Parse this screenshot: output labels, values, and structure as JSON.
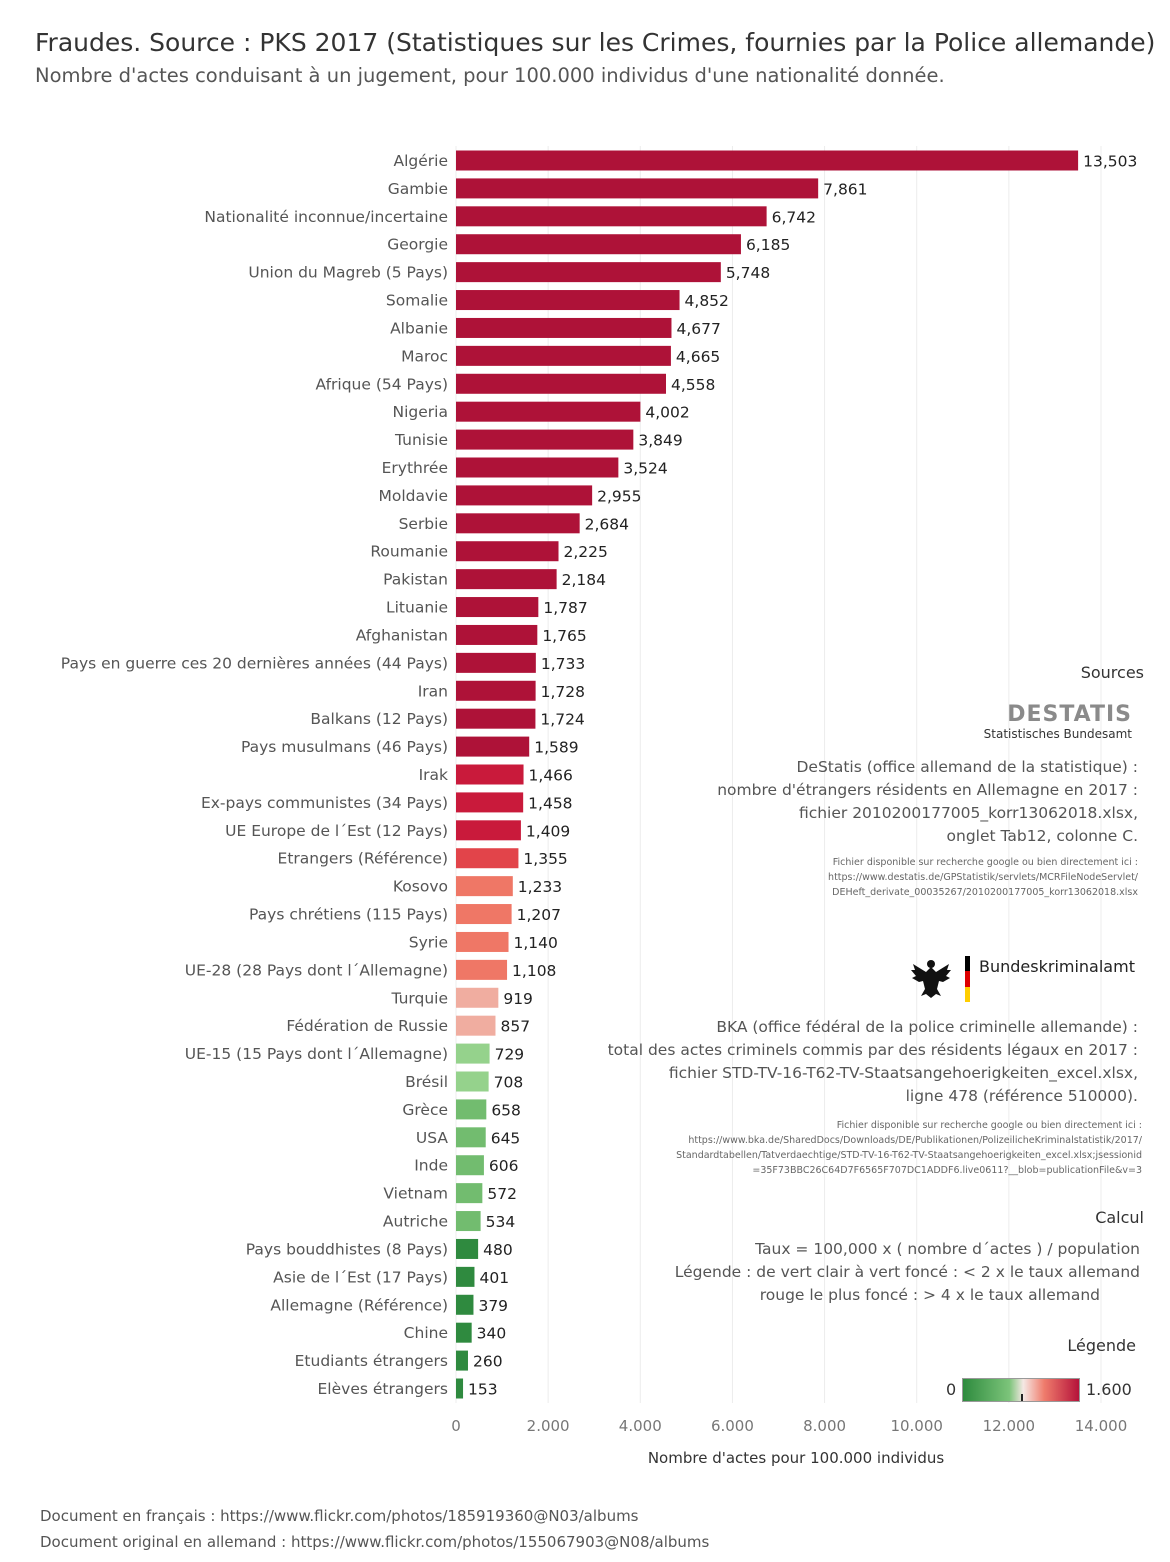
{
  "title": "Fraudes. Source : PKS 2017 (Statistiques sur les Crimes, fournies par la Police allemande)",
  "subtitle": "Nombre d'actes conduisant à un jugement, pour 100.000 individus d'une nationalité donnée.",
  "chart_data": {
    "type": "bar",
    "orientation": "horizontal",
    "categories": [
      "Algérie",
      "Gambie",
      "Nationalité inconnue/incertaine",
      "Georgie",
      "Union du Magreb (5 Pays)",
      "Somalie",
      "Albanie",
      "Maroc",
      "Afrique (54 Pays)",
      "Nigeria",
      "Tunisie",
      "Erythrée",
      "Moldavie",
      "Serbie",
      "Roumanie",
      "Pakistan",
      "Lituanie",
      "Afghanistan",
      "Pays en guerre ces 20 dernières années (44 Pays)",
      "Iran",
      "Balkans (12 Pays)",
      "Pays musulmans (46 Pays)",
      "Irak",
      "Ex-pays communistes (34 Pays)",
      "UE  Europe de l´Est (12  Pays)",
      "Etrangers (Référence)",
      "Kosovo",
      "Pays chrétiens (115 Pays)",
      "Syrie",
      "UE-28 (28 Pays dont l´Allemagne)",
      "Turquie",
      "Fédération de Russie",
      "UE-15 (15 Pays dont l´Allemagne)",
      "Brésil",
      "Grèce",
      "USA",
      "Inde",
      "Vietnam",
      "Autriche",
      "Pays bouddhistes (8  Pays)",
      "Asie de l´Est (17 Pays)",
      "Allemagne (Référence)",
      "Chine",
      "Etudiants  étrangers",
      "Elèves  étrangers"
    ],
    "values": [
      13503,
      7861,
      6742,
      6185,
      5748,
      4852,
      4677,
      4665,
      4558,
      4002,
      3849,
      3524,
      2955,
      2684,
      2225,
      2184,
      1787,
      1765,
      1733,
      1728,
      1724,
      1589,
      1466,
      1458,
      1409,
      1355,
      1233,
      1207,
      1140,
      1108,
      919,
      857,
      729,
      708,
      658,
      645,
      606,
      572,
      534,
      480,
      401,
      379,
      340,
      260,
      153
    ],
    "value_labels": [
      "13,503",
      "7,861",
      "6,742",
      "6,185",
      "5,748",
      "4,852",
      "4,677",
      "4,665",
      "4,558",
      "4,002",
      "3,849",
      "3,524",
      "2,955",
      "2,684",
      "2,225",
      "2,184",
      "1,787",
      "1,765",
      "1,733",
      "1,728",
      "1,724",
      "1,589",
      "1,466",
      "1,458",
      "1,409",
      "1,355",
      "1,233",
      "1,207",
      "1,140",
      "1,108",
      "919",
      "857",
      "729",
      "708",
      "658",
      "645",
      "606",
      "572",
      "534",
      "480",
      "401",
      "379",
      "340",
      "260",
      "153"
    ],
    "xlim": [
      0,
      14000
    ],
    "xticks": [
      0,
      2000,
      4000,
      6000,
      8000,
      10000,
      12000,
      14000
    ],
    "xtick_labels": [
      "0",
      "2.000",
      "4.000",
      "6.000",
      "8.000",
      "10.000",
      "12.000",
      "14.000"
    ],
    "xlabel": "Nombre d'actes pour 100.000 individus",
    "grid": "vertical",
    "colors": {
      "dark_red": "#ae1238",
      "red": "#c91a3b",
      "red_light": "#e2444a",
      "salmon": "#ef7766",
      "pink": "#f0ada0",
      "green_light": "#95d28c",
      "green": "#72bc6f",
      "green_dark": "#2f8a3f"
    }
  },
  "sources": {
    "heading": "Sources",
    "destatis_logo": "DESTATIS",
    "destatis_logo_sub": "Statistisches Bundesamt",
    "destatis_text": [
      "DeStatis (office allemand de la statistique) :",
      "nombre d'étrangers résidents en Allemagne en 2017 :",
      "fichier 2010200177005_korr13062018.xlsx,",
      "onglet Tab12, colonne C."
    ],
    "destatis_small": [
      "Fichier disponible sur recherche google ou bien directement ici :",
      "https://www.destatis.de/GPStatistik/servlets/MCRFileNodeServlet/",
      "DEHeft_derivate_00035267/2010200177005_korr13062018.xlsx"
    ],
    "bka_logo": "Bundeskriminalamt",
    "bka_text": [
      "BKA (office fédéral de la police criminelle allemande) :",
      "total des actes criminels commis par des résidents légaux en 2017 :",
      "fichier STD-TV-16-T62-TV-Staatsangehoerigkeiten_excel.xlsx,",
      "ligne 478 (référence 510000)."
    ],
    "bka_small": [
      "Fichier disponible sur recherche google ou bien directement ici :",
      "https://www.bka.de/SharedDocs/Downloads/DE/Publikationen/PolizeilicheKriminalstatistik/2017/",
      "Standardtabellen/Tatverdaechtige/STD-TV-16-T62-TV-Staatsangehoerigkeiten_excel.xlsx;jsessionid",
      "=35F73BBC26C64D7F6565F707DC1ADDF6.live0611?__blob=publicationFile&v=3"
    ]
  },
  "calcul": {
    "heading": "Calcul",
    "lines": [
      "Taux  =  100,000 x  ( nombre d´actes )  / population",
      "Légende : de vert clair à vert foncé : < 2 x le taux allemand",
      "rouge le plus foncé : > 4 x le taux allemand"
    ]
  },
  "legend": {
    "heading": "Légende",
    "min": "0",
    "max": "1.600"
  },
  "footer": [
    "Document en français : https://www.flickr.com/photos/185919360@N03/albums",
    "Document original en allemand : https://www.flickr.com/photos/155067903@N08/albums"
  ]
}
